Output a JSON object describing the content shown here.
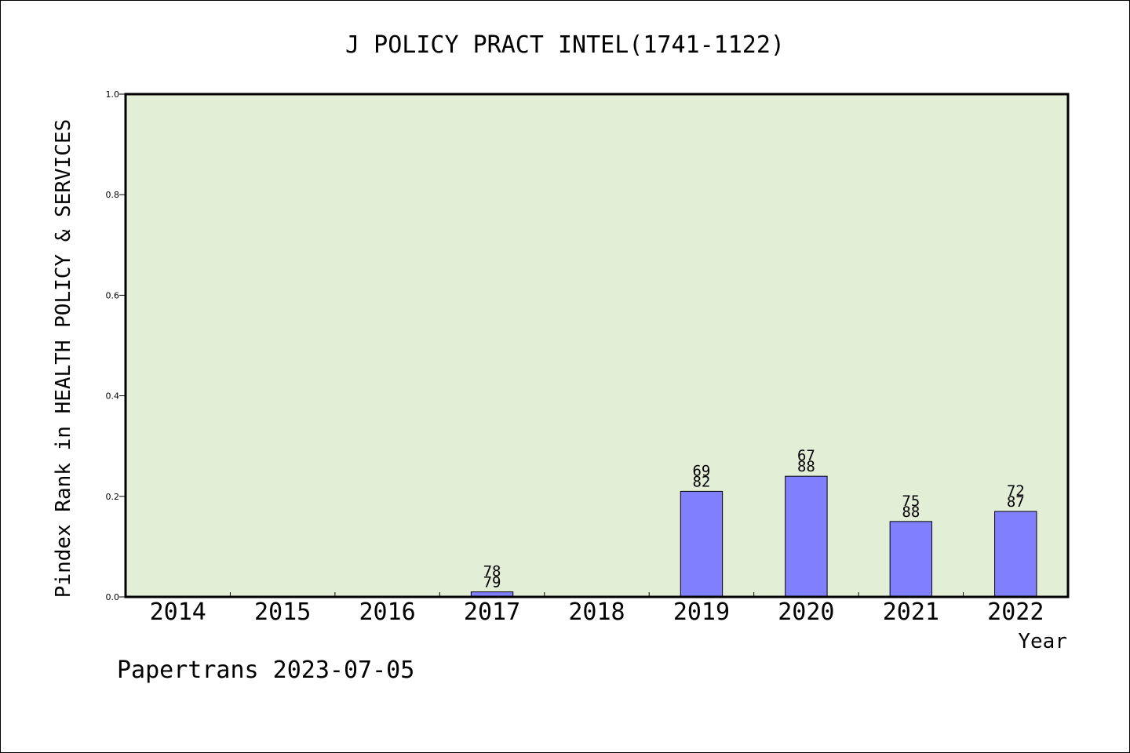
{
  "chart_data": {
    "type": "bar",
    "title": "J POLICY PRACT INTEL(1741-1122)",
    "xlabel": "Year",
    "ylabel": "Pindex Rank in HEALTH POLICY & SERVICES",
    "categories": [
      "2014",
      "2015",
      "2016",
      "2017",
      "2018",
      "2019",
      "2020",
      "2021",
      "2022"
    ],
    "values": [
      null,
      null,
      null,
      0.01,
      null,
      0.21,
      0.24,
      0.15,
      0.17
    ],
    "bar_labels": [
      null,
      null,
      null,
      {
        "rank": "78",
        "total": "79"
      },
      null,
      {
        "rank": "69",
        "total": "82"
      },
      {
        "rank": "67",
        "total": "88"
      },
      {
        "rank": "75",
        "total": "88"
      },
      {
        "rank": "72",
        "total": "87"
      }
    ],
    "ylim": [
      0,
      1.0
    ],
    "yticks": [
      "0.0",
      "0.2",
      "0.4",
      "0.6",
      "0.8",
      "1.0"
    ],
    "grid": false,
    "colors": {
      "plot_background": "#e2efd6",
      "bar_fill": "#8080ff",
      "axis": "#000000"
    },
    "footer": "Papertrans 2023-07-05"
  }
}
